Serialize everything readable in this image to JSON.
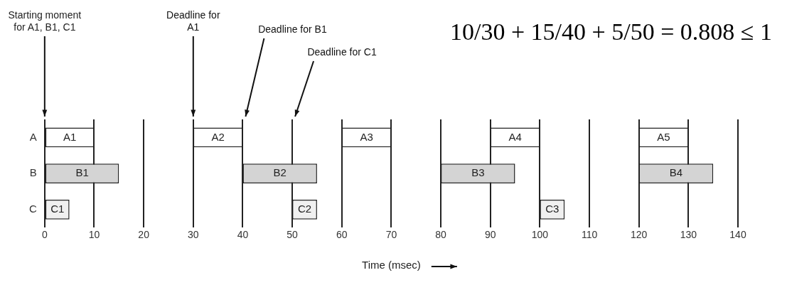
{
  "chart_data": {
    "type": "bar",
    "orientation": "horizontal",
    "xlabel": "Time (msec)",
    "categories": [
      "A",
      "B",
      "C"
    ],
    "series": [
      {
        "colors": [
          "#ffffff",
          "#d4d4d4",
          "#f0f0f0"
        ],
        "values": [
          10,
          15,
          5
        ],
        "base": [
          0,
          0,
          0
        ],
        "value_labels": [
          "A1",
          "B1",
          "C1"
        ]
      },
      {
        "colors": [
          "#ffffff",
          "#d4d4d4",
          "#f0f0f0"
        ],
        "values": [
          10,
          15,
          5
        ],
        "base": [
          30,
          40,
          50
        ],
        "value_labels": [
          "A2",
          "B2",
          "C2"
        ]
      },
      {
        "colors": [
          "#ffffff",
          "#d4d4d4",
          "#f0f0f0"
        ],
        "values": [
          10,
          15,
          5
        ],
        "base": [
          60,
          80,
          100
        ],
        "value_labels": [
          "A3",
          "B3",
          "C3"
        ]
      },
      {
        "colors": [
          "#ffffff",
          "#d4d4d4",
          null
        ],
        "values": [
          10,
          15,
          null
        ],
        "base": [
          90,
          120,
          null
        ],
        "value_labels": [
          "A4",
          "B4",
          null
        ]
      },
      {
        "colors": [
          "#ffffff",
          null,
          null
        ],
        "values": [
          10,
          null,
          null
        ],
        "base": [
          120,
          null,
          null
        ],
        "value_labels": [
          "A5",
          null,
          null
        ]
      }
    ],
    "xlim": [
      0,
      140
    ],
    "xticks": [
      0,
      10,
      20,
      30,
      40,
      50,
      60,
      70,
      80,
      90,
      100,
      110,
      120,
      130,
      140
    ],
    "grid": "x",
    "legend": false,
    "annotations": [
      "Starting moment for A1, B1, C1",
      "Deadline for A1",
      "Deadline for B1",
      "Deadline for C1",
      "10/30 + 15/40 + 5/50 = 0.808 ≤ 1"
    ]
  }
}
